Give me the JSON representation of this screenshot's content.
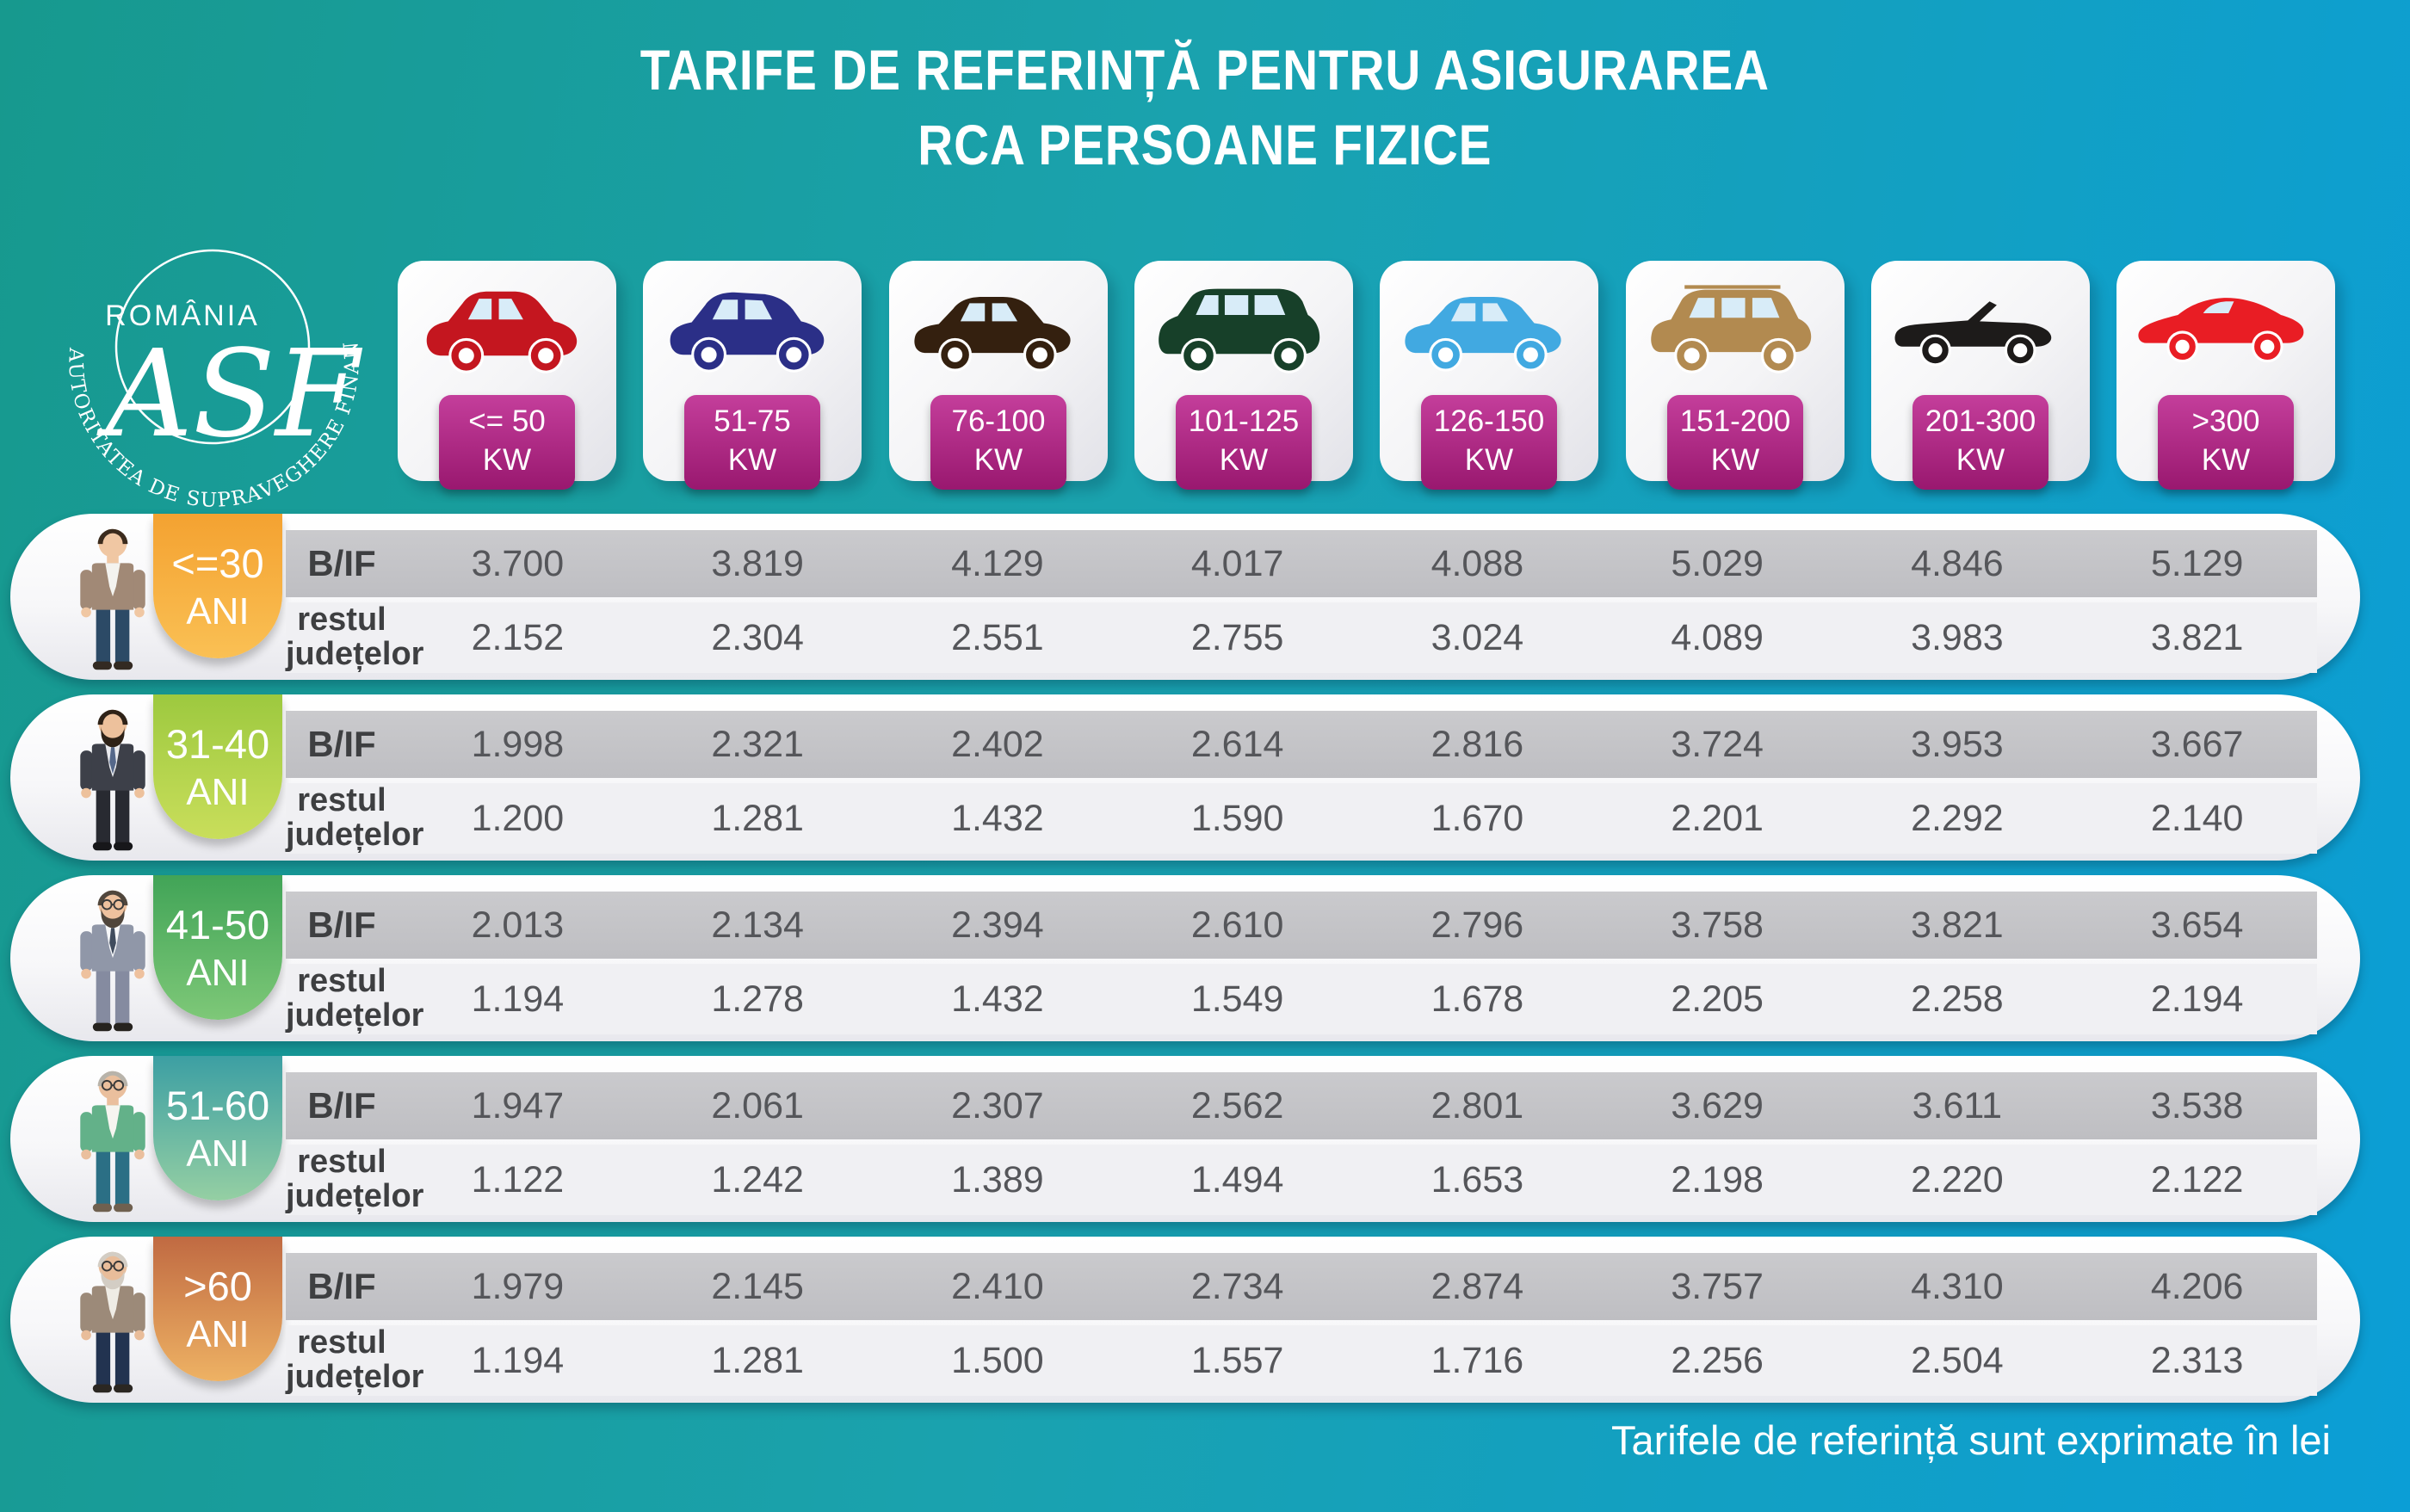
{
  "title": {
    "line1": "TARIFE DE REFERINȚĂ PENTRU ASIGURAREA",
    "line2": "RCA PERSOANE FIZICE"
  },
  "logo": {
    "country": "ROMÂNIA",
    "monogram": "ASF",
    "ring_text": "AUTORITATEA DE SUPRAVEGHERE FINANCIARĂ"
  },
  "footnote": "Tarifele de referință sunt exprimate în lei",
  "colors": {
    "bg_left": "#17998e",
    "bg_mid": "#1aa2ae",
    "bg_right": "#0b9ed6",
    "kw_badge_from": "#c43e9b",
    "kw_badge_to": "#99186f",
    "band_dark": "#c3c3c6",
    "band_light": "#f0f0f3",
    "value_text": "#55565a",
    "label_text": "#3e3f41"
  },
  "row_labels": {
    "bif": "B/IF",
    "rest_line1": "restul",
    "rest_line2": "județelor",
    "age_unit": "ANI"
  },
  "power_columns": [
    {
      "label": "<= 50",
      "unit": "KW",
      "car": "city-car-icon",
      "color": "#c4161f"
    },
    {
      "label": "51-75",
      "unit": "KW",
      "car": "hatchback-icon",
      "color": "#2b2f87"
    },
    {
      "label": "76-100",
      "unit": "KW",
      "car": "sedan-icon",
      "color": "#34200f"
    },
    {
      "label": "101-125",
      "unit": "KW",
      "car": "minivan-icon",
      "color": "#174029"
    },
    {
      "label": "126-150",
      "unit": "KW",
      "car": "sedan-icon",
      "color": "#41a9e1"
    },
    {
      "label": "151-200",
      "unit": "KW",
      "car": "suv-icon",
      "color": "#b28a50"
    },
    {
      "label": "201-300",
      "unit": "KW",
      "car": "convertible-icon",
      "color": "#1d1b1a"
    },
    {
      "label": ">300",
      "unit": "KW",
      "car": "sports-car-icon",
      "color": "#e91d24"
    }
  ],
  "age_groups": [
    {
      "age": "<=30",
      "badge_from": "#f4a231",
      "badge_to": "#fac054",
      "person": {
        "skin": "#f0c7a3",
        "hair": "#3b2b1d",
        "top": "#a18976",
        "shirt": "#f4f3ef",
        "pants": "#2c4a66",
        "shoes": "#332a22",
        "beard": false,
        "glasses": false,
        "tie": null
      }
    },
    {
      "age": "31-40",
      "badge_from": "#9dc93f",
      "badge_to": "#c9de5b",
      "person": {
        "skin": "#edc19c",
        "hair": "#2e2217",
        "top": "#3d4049",
        "shirt": "#e9eaee",
        "pants": "#282a31",
        "shoes": "#17171a",
        "beard": true,
        "glasses": false,
        "tie": "#55688a"
      }
    },
    {
      "age": "41-50",
      "badge_from": "#41a457",
      "badge_to": "#7ec878",
      "person": {
        "skin": "#eec19e",
        "hair": "#50463c",
        "top": "#9097a8",
        "shirt": "#f7f8fa",
        "pants": "#858ba0",
        "shoes": "#26231f",
        "beard": true,
        "glasses": true,
        "tie": "#404c5e"
      }
    },
    {
      "age": "51-60",
      "badge_from": "#3c9fa3",
      "badge_to": "#95cfa3",
      "person": {
        "skin": "#eabf9d",
        "hair": "#b8b3aa",
        "top": "#63b189",
        "shirt": "#f6f5f0",
        "pants": "#2b6f85",
        "shoes": "#6f604f",
        "beard": false,
        "glasses": true,
        "tie": null
      }
    },
    {
      "age": ">60",
      "badge_from": "#c06a42",
      "badge_to": "#eeb264",
      "person": {
        "skin": "#e9bd9a",
        "hair": "#d3cdc4",
        "top": "#9c8a79",
        "shirt": "#efece5",
        "pants": "#223350",
        "shoes": "#2b2722",
        "beard": true,
        "glasses": true,
        "tie": null
      }
    }
  ],
  "chart_data": {
    "type": "table",
    "title": "TARIFE DE REFERINȚĂ PENTRU ASIGURAREA RCA PERSOANE FIZICE",
    "unit": "lei",
    "columns_kw": [
      "<= 50",
      "51-75",
      "76-100",
      "101-125",
      "126-150",
      "151-200",
      "201-300",
      ">300"
    ],
    "rows_age": [
      "<=30 ANI",
      "31-40 ANI",
      "41-50 ANI",
      "51-60 ANI",
      ">60 ANI"
    ],
    "zones": [
      "B/IF",
      "restul județelor"
    ],
    "bif": [
      [
        3700,
        3819,
        4129,
        4017,
        4088,
        5029,
        4846,
        5129
      ],
      [
        1998,
        2321,
        2402,
        2614,
        2816,
        3724,
        3953,
        3667
      ],
      [
        2013,
        2134,
        2394,
        2610,
        2796,
        3758,
        3821,
        3654
      ],
      [
        1947,
        2061,
        2307,
        2562,
        2801,
        3629,
        3611,
        3538
      ],
      [
        1979,
        2145,
        2410,
        2734,
        2874,
        3757,
        4310,
        4206
      ]
    ],
    "restul_judetelor": [
      [
        2152,
        2304,
        2551,
        2755,
        3024,
        4089,
        3983,
        3821
      ],
      [
        1200,
        1281,
        1432,
        1590,
        1670,
        2201,
        2292,
        2140
      ],
      [
        1194,
        1278,
        1432,
        1549,
        1678,
        2205,
        2258,
        2194
      ],
      [
        1122,
        1242,
        1389,
        1494,
        1653,
        2198,
        2220,
        2122
      ],
      [
        1194,
        1281,
        1500,
        1557,
        1716,
        2256,
        2504,
        2313
      ]
    ]
  }
}
